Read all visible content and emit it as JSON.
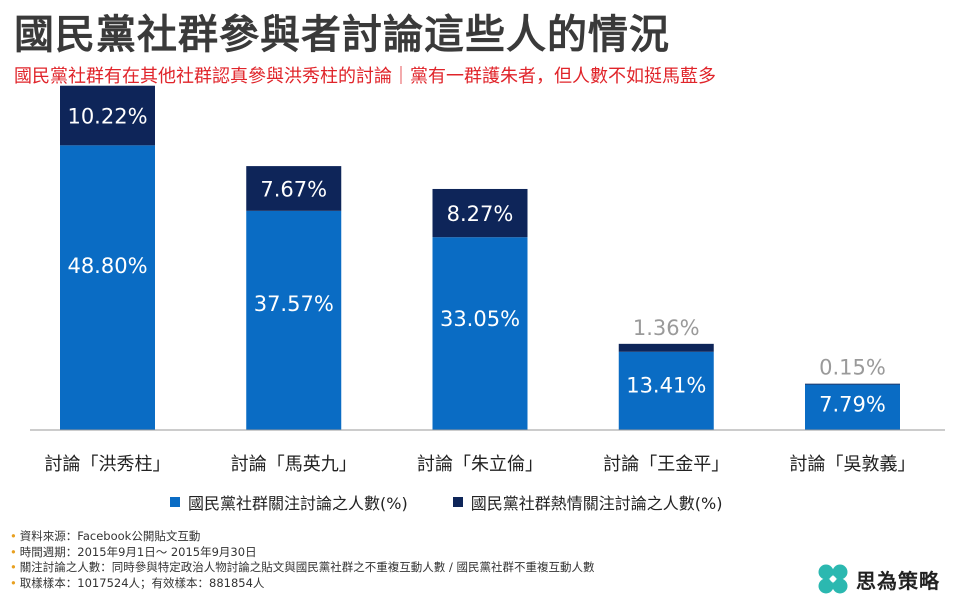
{
  "header": {
    "title": "國民黨社群參與者討論這些人的情況",
    "subtitle": "國民黨社群有在其他社群認真參與洪秀柱的討論｜黨有一群護朱者，但人數不如挺馬藍多"
  },
  "colors": {
    "primary": "#0a6cc4",
    "secondary": "#0e2559",
    "light_label": "#9a9a9a",
    "subtitle_red": "#e0242a",
    "bullet_orange": "#e8a020",
    "logo_teal": "#2bb8b0"
  },
  "chart_data": {
    "type": "bar",
    "stacked": true,
    "categories": [
      "討論「洪秀柱」",
      "討論「馬英九」",
      "討論「朱立倫」",
      "討論「王金平」",
      "討論「吳敦義」"
    ],
    "series": [
      {
        "name": "國民黨社群關注討論之人數(%)",
        "values": [
          48.8,
          37.57,
          33.05,
          13.41,
          7.79
        ],
        "labels": [
          "48.80%",
          "37.57%",
          "33.05%",
          "13.41%",
          "7.79%"
        ]
      },
      {
        "name": "國民黨社群熱情關注討論之人數(%)",
        "values": [
          10.22,
          7.67,
          8.27,
          1.36,
          0.15
        ],
        "labels": [
          "10.22%",
          "7.67%",
          "8.27%",
          "1.36%",
          "0.15%"
        ]
      }
    ],
    "ylim": [
      0,
      60
    ],
    "grid": false,
    "legend_position": "bottom"
  },
  "notes": [
    "資料來源：Facebook公開貼文互動",
    "時間週期：2015年9月1日～ 2015年9月30日",
    "關注討論之人數：同時參與特定政治人物討論之貼文與國民黨社群之不重複互動人數 / 國民黨社群不重複互動人數",
    "取樣樣本：1017524人；有效樣本：881854人"
  ],
  "logo": {
    "text": "思為策略",
    "icon": "four-leaf-logo-icon"
  }
}
